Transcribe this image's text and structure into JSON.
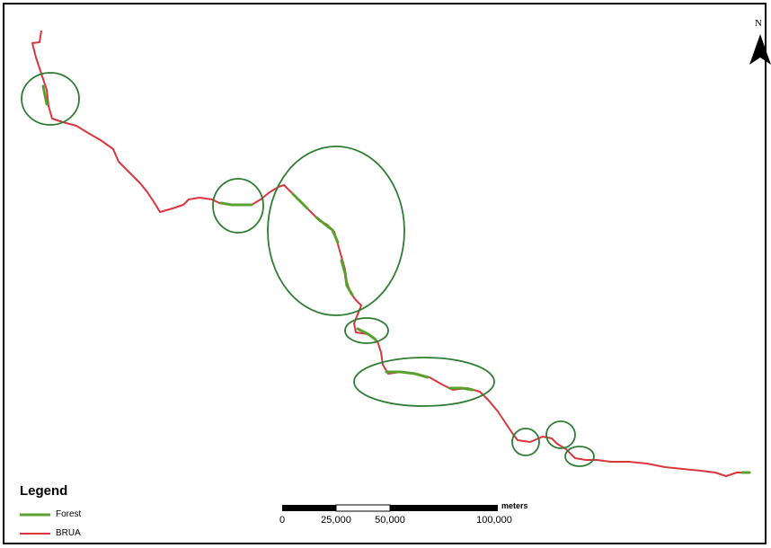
{
  "north_arrow": {
    "label": "N",
    "icon": "north-arrow-icon"
  },
  "legend": {
    "title": "Legend",
    "items": [
      {
        "label": "Forest",
        "color": "#5aa02c"
      },
      {
        "label": "BRUA",
        "color": "#d9363e"
      }
    ]
  },
  "scale_bar": {
    "units": "meters",
    "labels": [
      "0",
      "25,000",
      "50,000",
      "100,000"
    ]
  },
  "colors": {
    "route": "#d9363e",
    "forest": "#5aa02c",
    "highlight_circle": "#2e7d32"
  }
}
